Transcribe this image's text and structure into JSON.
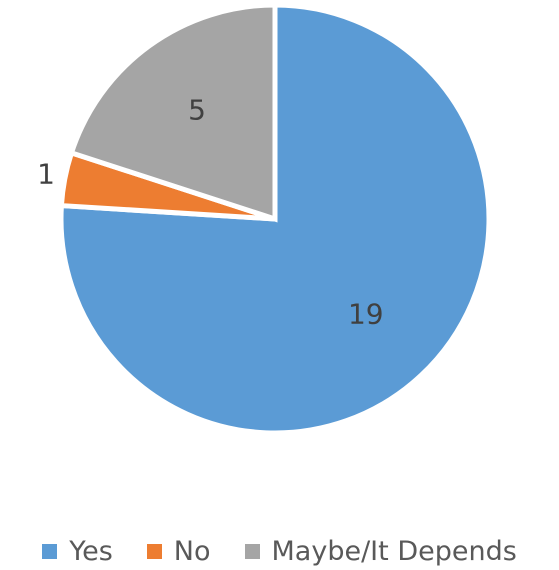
{
  "chart_data": {
    "type": "pie",
    "categories": [
      "Yes",
      "No",
      "Maybe/It Depends"
    ],
    "values": [
      19,
      1,
      5
    ],
    "colors": [
      "#5B9BD5",
      "#ED7D31",
      "#A5A5A5"
    ],
    "data_labels": [
      "19",
      "1",
      "5"
    ],
    "start_angle_deg": 0,
    "direction": "clockwise",
    "legend": "bottom"
  }
}
